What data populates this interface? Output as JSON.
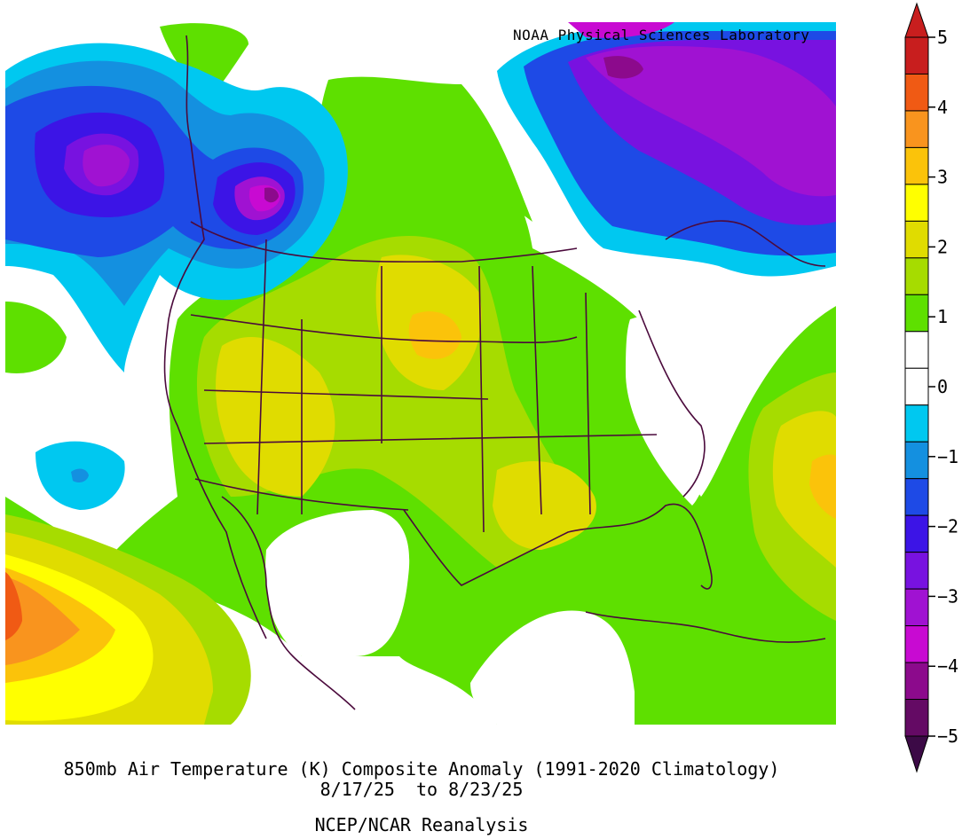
{
  "credit": "NOAA Physical Sciences Laboratory",
  "title": {
    "line1": "850mb Air Temperature (K) Composite Anomaly (1991-2020 Climatology)",
    "line2": "8/17/25  to 8/23/25",
    "line3": "NCEP/NCAR Reanalysis"
  },
  "colorbar": {
    "ticks": [
      "5",
      "4",
      "3",
      "2",
      "1",
      "0",
      "−1",
      "−2",
      "−3",
      "−4",
      "−5"
    ],
    "colors_top_to_bottom": [
      "#c81e1e",
      "#f05a14",
      "#f9941e",
      "#fbc30a",
      "#ffff00",
      "#e0dc00",
      "#a6dc00",
      "#5ee000",
      "#ffffff",
      "#ffffff",
      "#00c8f0",
      "#1490e0",
      "#1e4ae6",
      "#3c14e6",
      "#7812e0",
      "#a012d2",
      "#c80ad2",
      "#8c0a8c",
      "#640a64"
    ],
    "min": -5,
    "max": 5,
    "step": 0.5
  }
}
